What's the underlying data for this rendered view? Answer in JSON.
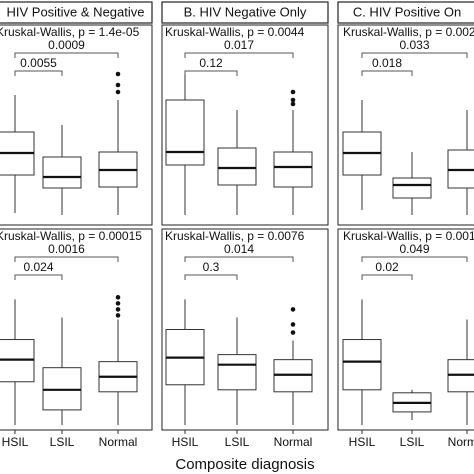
{
  "x_label": "Composite diagnosis",
  "chart_data": [
    {
      "type": "box",
      "title": "HIV Positive & Negative",
      "annotation": "Kruskal-Wallis, p = 1.4e-05",
      "comparisons": [
        "0.0009",
        "0.0055"
      ],
      "ylim": [
        0,
        100
      ],
      "boxes": [
        {
          "whisker_low": 6,
          "q1": 25,
          "median": 36,
          "q3": 46.5,
          "whisker_high": 65,
          "outliers": []
        },
        {
          "whisker_low": 5,
          "q1": 18.5,
          "median": 24,
          "q3": 34,
          "whisker_high": 50,
          "outliers": []
        },
        {
          "whisker_low": 5,
          "q1": 19,
          "median": 27.5,
          "q3": 36.5,
          "whisker_high": 62.5,
          "outliers": [
            75.5,
            70,
            66.5
          ]
        }
      ]
    },
    {
      "type": "box",
      "title": "B. HIV Negative Only",
      "annotation": "Kruskal-Wallis, p = 0.0044",
      "comparisons": [
        "0.017",
        "0.12"
      ],
      "ylim": [
        0,
        100
      ],
      "boxes": [
        {
          "whisker_low": 5,
          "q1": 30,
          "median": 36.5,
          "q3": 62.5,
          "whisker_high": 75,
          "outliers": []
        },
        {
          "whisker_low": 5,
          "q1": 20,
          "median": 28.5,
          "q3": 38.5,
          "whisker_high": 57.5,
          "outliers": []
        },
        {
          "whisker_low": 5,
          "q1": 19,
          "median": 29,
          "q3": 36.5,
          "whisker_high": 57.5,
          "outliers": [
            66.5,
            62.5,
            60.5
          ]
        }
      ]
    },
    {
      "type": "box",
      "title": "C. HIV Positive On",
      "annotation": "Kruskal-Wallis, p = 0.002",
      "comparisons": [
        "0.033",
        "0.018"
      ],
      "ylim": [
        0,
        100
      ],
      "boxes": [
        {
          "whisker_low": 7.5,
          "q1": 25,
          "median": 36,
          "q3": 46.5,
          "whisker_high": 62.5,
          "outliers": []
        },
        {
          "whisker_low": 5,
          "q1": 13.5,
          "median": 20,
          "q3": 23.5,
          "whisker_high": 36.5,
          "outliers": []
        },
        {
          "whisker_low": 5,
          "q1": 18.5,
          "median": 27.5,
          "q3": 37.5,
          "whisker_high": 57.5,
          "outliers": []
        }
      ]
    },
    {
      "type": "box",
      "annotation": "Kruskal-Wallis, p = 0.00015",
      "comparisons": [
        "0.0016",
        "0.024"
      ],
      "ylim": [
        0,
        100
      ],
      "categories": [
        "HSIL",
        "LSIL",
        "Normal"
      ],
      "boxes": [
        {
          "whisker_low": 2.5,
          "q1": 24,
          "median": 35,
          "q3": 45,
          "whisker_high": 65,
          "outliers": []
        },
        {
          "whisker_low": 2.5,
          "q1": 10,
          "median": 20,
          "q3": 31,
          "whisker_high": 56,
          "outliers": []
        },
        {
          "whisker_low": 2.5,
          "q1": 19,
          "median": 26.5,
          "q3": 34,
          "whisker_high": 55,
          "outliers": [
            66,
            63,
            60,
            57
          ]
        }
      ]
    },
    {
      "type": "box",
      "annotation": "Kruskal-Wallis, p = 0.0076",
      "comparisons": [
        "0.014",
        "0.3"
      ],
      "ylim": [
        0,
        100
      ],
      "categories": [
        "HSIL",
        "LSIL",
        "Normal"
      ],
      "boxes": [
        {
          "whisker_low": 2.5,
          "q1": 22.5,
          "median": 36,
          "q3": 50,
          "whisker_high": 65,
          "outliers": []
        },
        {
          "whisker_low": 2.5,
          "q1": 20,
          "median": 32.5,
          "q3": 37.5,
          "whisker_high": 56,
          "outliers": []
        },
        {
          "whisker_low": 2.5,
          "q1": 19,
          "median": 27.5,
          "q3": 35,
          "whisker_high": 44.5,
          "outliers": [
            52.5,
            48.5,
            60
          ]
        }
      ]
    },
    {
      "type": "box",
      "annotation": "Kruskal-Wallis, p = 0.001",
      "comparisons": [
        "0.049",
        "0.02"
      ],
      "ylim": [
        0,
        100
      ],
      "categories": [
        "HSIL",
        "LSIL",
        "Normal"
      ],
      "boxes": [
        {
          "whisker_low": 2.5,
          "q1": 20,
          "median": 34,
          "q3": 45,
          "whisker_high": 65,
          "outliers": []
        },
        {
          "whisker_low": 5,
          "q1": 9,
          "median": 13.5,
          "q3": 18.5,
          "whisker_high": 20,
          "outliers": []
        },
        {
          "whisker_low": 2.5,
          "q1": 19,
          "median": 27.5,
          "q3": 35,
          "whisker_high": 55,
          "outliers": []
        }
      ]
    }
  ]
}
